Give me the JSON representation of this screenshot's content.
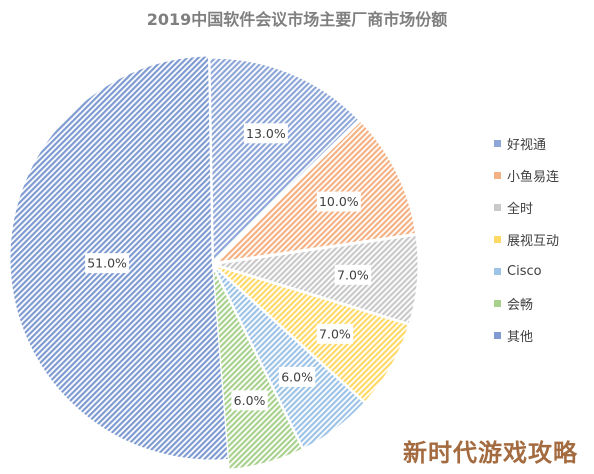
{
  "watermark": "新时代游戏攻略",
  "chart_data": {
    "type": "pie",
    "title": "2019中国软件会议市场主要厂商市场份额",
    "slices": [
      {
        "name": "好视通",
        "value": 13.0,
        "label": "13.0%",
        "color": "#8ea6d8"
      },
      {
        "name": "小鱼易连",
        "value": 10.0,
        "label": "10.0%",
        "color": "#f4b183"
      },
      {
        "name": "全时",
        "value": 7.0,
        "label": "7.0%",
        "color": "#c9c9c9"
      },
      {
        "name": "展视互动",
        "value": 7.0,
        "label": "7.0%",
        "color": "#ffd966"
      },
      {
        "name": "Cisco",
        "value": 6.0,
        "label": "6.0%",
        "color": "#9dc3e6"
      },
      {
        "name": "会畅",
        "value": 6.0,
        "label": "6.0%",
        "color": "#a9d18e"
      },
      {
        "name": "其他",
        "value": 51.0,
        "label": "51.0%",
        "color": "#7f9bd1"
      }
    ],
    "legend_position": "right"
  }
}
